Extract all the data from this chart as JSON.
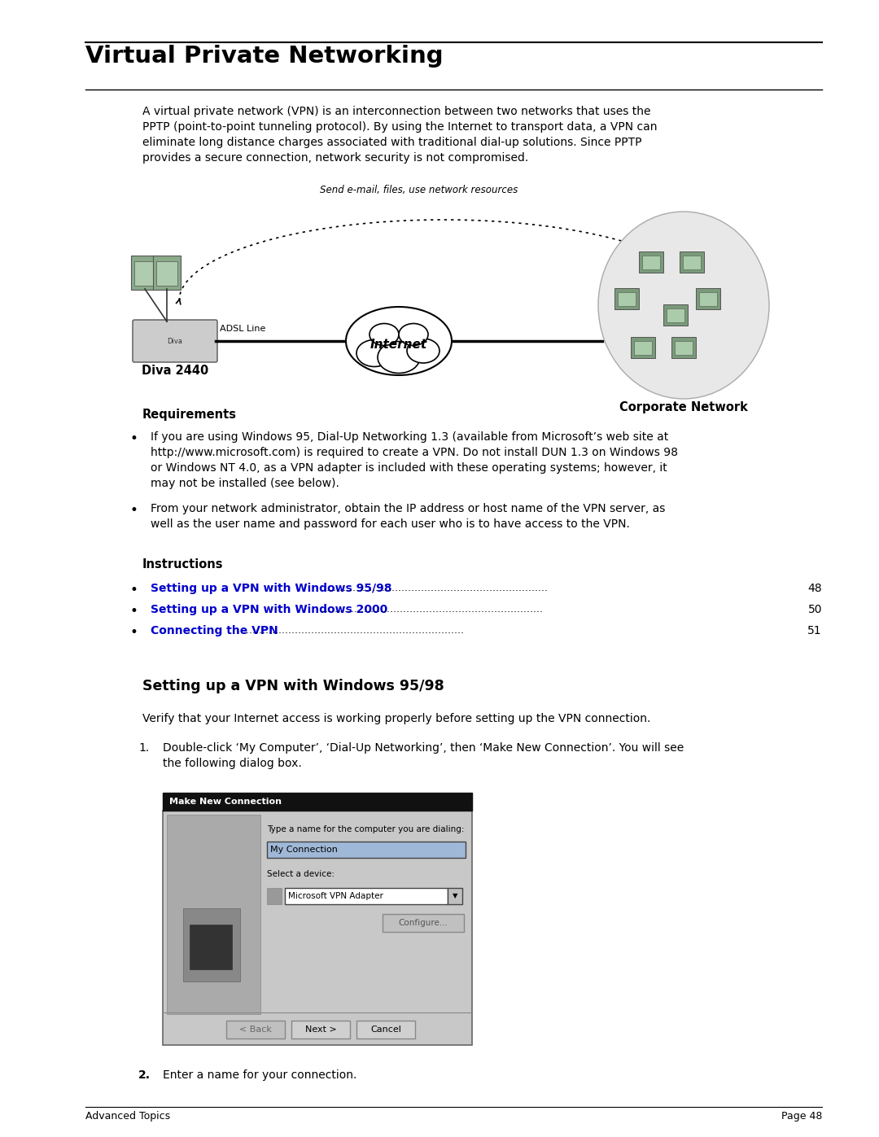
{
  "bg_color": "#ffffff",
  "title": "Virtual Private Networking",
  "title_fontsize": 21,
  "body_fontsize": 10.0,
  "small_fontsize": 9.0,
  "intro_text": "A virtual private network (VPN) is an interconnection between two networks that uses the\nPPTP (point-to-point tunneling protocol). By using the Internet to transport data, a VPN can\neliminate long distance charges associated with traditional dial-up solutions. Since PPTP\nprovides a secure connection, network security is not compromised.",
  "requirements_header": "Requirements",
  "bullet1": "If you are using Windows 95, Dial-Up Networking 1.3 (available from Microsoft’s web site at\nhttp://www.microsoft.com) is required to create a VPN. Do not install DUN 1.3 on Windows 98\nor Windows NT 4.0, as a VPN adapter is included with these operating systems; however, it\nmay not be installed (see below).",
  "bullet2": "From your network administrator, obtain the IP address or host name of the VPN server, as\nwell as the user name and password for each user who is to have access to the VPN.",
  "instructions_header": "Instructions",
  "link1_text": "Setting up a VPN with Windows 95/98",
  "link1_page": "48",
  "link2_text": "Setting up a VPN with Windows 2000",
  "link2_page": "50",
  "link3_text": "Connecting the VPN",
  "link3_page": "51",
  "section2_header": "Setting up a VPN with Windows 95/98",
  "section2_intro": "Verify that your Internet access is working properly before setting up the VPN connection.",
  "step1_num": "1.",
  "step1_text": "Double-click ‘My Computer’, ‘Dial-Up Networking’, then ‘Make New Connection’. You will see\nthe following dialog box.",
  "step2_num": "2.",
  "step2_text": "Enter a name for your connection.",
  "footer_left": "Advanced Topics",
  "footer_right": "Page 48",
  "link_color": "#0000cc",
  "header_color": "#000000",
  "text_color": "#000000"
}
